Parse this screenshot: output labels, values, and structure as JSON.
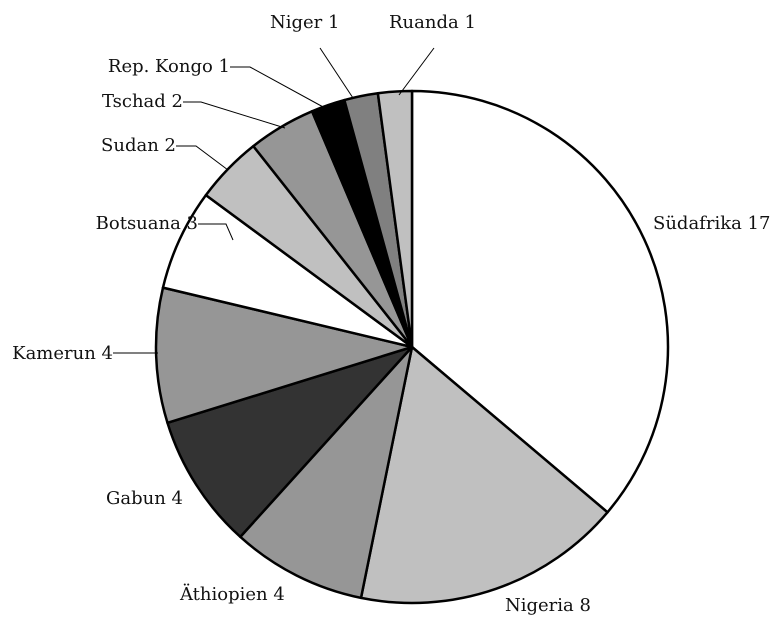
{
  "chart_data": {
    "type": "pie",
    "slices": [
      {
        "label": "Südafrika 17",
        "category": "Südafrika",
        "value": 17,
        "color": "#ffffff"
      },
      {
        "label": "Nigeria 8",
        "category": "Nigeria",
        "value": 8,
        "color": "#c0c0c0"
      },
      {
        "label": "Äthiopien 4",
        "category": "Äthiopien",
        "value": 4,
        "color": "#969696"
      },
      {
        "label": "Gabun 4",
        "category": "Gabun",
        "value": 4,
        "color": "#333333"
      },
      {
        "label": "Kamerun 4",
        "category": "Kamerun",
        "value": 4,
        "color": "#969696"
      },
      {
        "label": "Botsuana 3",
        "category": "Botsuana",
        "value": 3,
        "color": "#ffffff"
      },
      {
        "label": "Sudan 2",
        "category": "Sudan",
        "value": 2,
        "color": "#c0c0c0"
      },
      {
        "label": "Tschad 2",
        "category": "Tschad",
        "value": 2,
        "color": "#969696"
      },
      {
        "label": "Rep. Kongo 1",
        "category": "Rep. Kongo",
        "value": 1,
        "color": "#000000"
      },
      {
        "label": "Niger 1",
        "category": "Niger",
        "value": 1,
        "color": "#808080"
      },
      {
        "label": "Ruanda 1",
        "category": "Ruanda",
        "value": 1,
        "color": "#c0c0c0"
      }
    ],
    "start": "12 o'clock",
    "direction": "clockwise",
    "legend": "none"
  }
}
